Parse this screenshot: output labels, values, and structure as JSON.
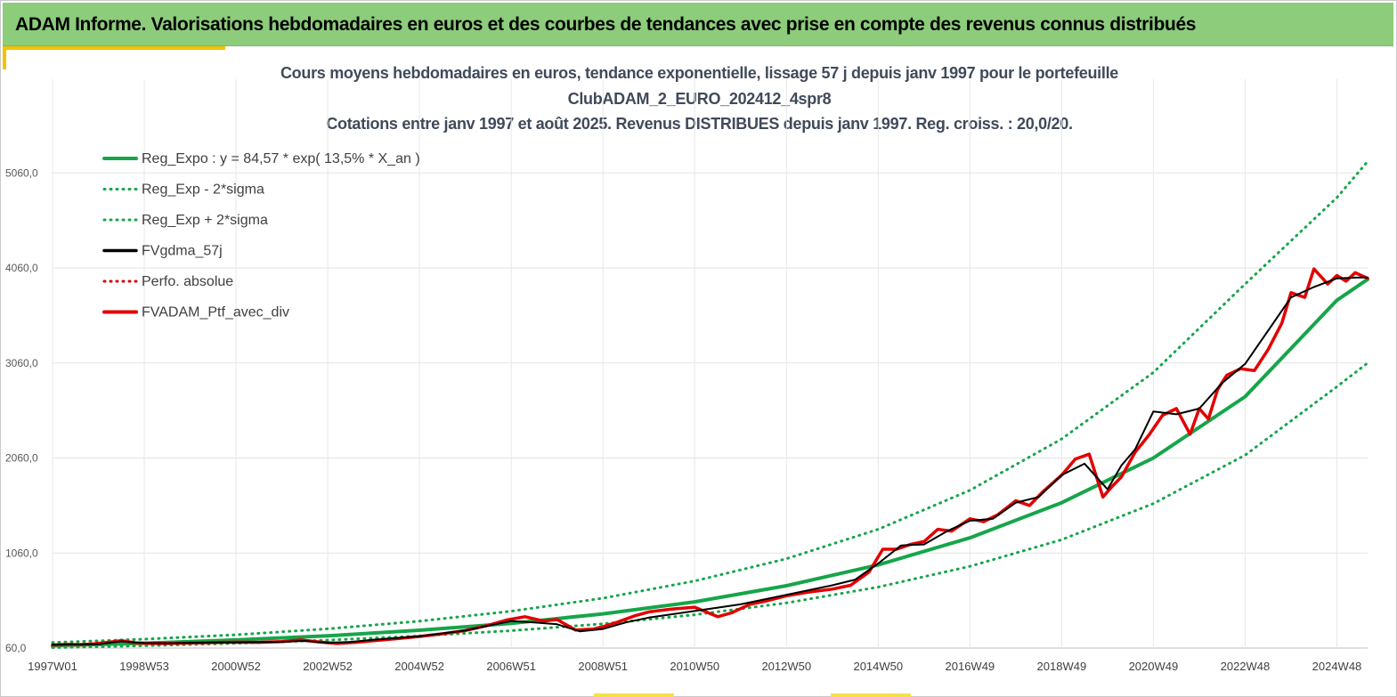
{
  "banner": {
    "title": "ADAM Informe. Valorisations hebdomadaires en euros et des courbes de tendances avec prise en compte des revenus connus distribués"
  },
  "colors": {
    "banner_bg": "#8ccc7a",
    "trend": "#16a54a",
    "band": "#16a54a",
    "smooth": "#000000",
    "perf": "#d40000",
    "portfolio": "#e30000",
    "accent": "#f2c200"
  },
  "chart_data": {
    "type": "line",
    "title_lines": [
      "Cours moyens hebdomadaires  en euros, tendance exponentielle, lissage 57 j depuis janv 1997 pour le portefeuille",
      "ClubADAM_2_EURO_202412_4spr8",
      "Cotations  entre janv 1997 et août  2025. Revenus DISTRIBUES depuis janv 1997. Reg. croiss. : 20,0/20."
    ],
    "xlabel": "",
    "ylabel": "",
    "x_tick_labels": [
      "1997W01",
      "1998W53",
      "2000W52",
      "2002W52",
      "2004W52",
      "2006W51",
      "2008W51",
      "2010W50",
      "2012W50",
      "2014W50",
      "2016W49",
      "2018W49",
      "2020W49",
      "2022W48",
      "2024W48"
    ],
    "x_tick_years": [
      1997.0,
      1999.0,
      2001.0,
      2003.0,
      2005.0,
      2007.0,
      2009.0,
      2011.0,
      2013.0,
      2015.0,
      2017.0,
      2019.0,
      2021.0,
      2023.0,
      2025.0
    ],
    "y_tick_labels": [
      "60,0",
      "1060,0",
      "2060,0",
      "3060,0",
      "4060,0",
      "5060,0"
    ],
    "y_ticks": [
      60,
      1060,
      2060,
      3060,
      4060,
      5060
    ],
    "xlim": [
      1997.0,
      2025.67
    ],
    "ylim": [
      60,
      6000
    ],
    "grid": true,
    "legend_position": "top-left",
    "legend": [
      {
        "label": "Reg_Expo : y = 84,57 * exp( 13,5% *  X_an )",
        "style": "solid-thick",
        "color": "#16a54a"
      },
      {
        "label": "Reg_Exp - 2*sigma",
        "style": "dotted",
        "color": "#16a54a"
      },
      {
        "label": "Reg_Exp + 2*sigma",
        "style": "dotted",
        "color": "#16a54a"
      },
      {
        "label": "FVgdma_57j",
        "style": "solid",
        "color": "#000000"
      },
      {
        "label": "Perfo. absolue",
        "style": "dotted",
        "color": "#d40000"
      },
      {
        "label": "FVADAM_Ptf_avec_div",
        "style": "solid-thick",
        "color": "#e30000"
      }
    ],
    "series": [
      {
        "name": "Reg_Expo : y = 84,57 * exp( 13,5% *  X_an )",
        "x": [
          1997.0,
          1999.0,
          2001.0,
          2003.0,
          2005.0,
          2007.0,
          2009.0,
          2011.0,
          2013.0,
          2015.0,
          2017.0,
          2019.0,
          2021.0,
          2023.0,
          2025.0,
          2025.67
        ],
        "values": [
          85,
          111,
          145,
          188,
          247,
          320,
          420,
          546,
          716,
          935,
          1220,
          1590,
          2060,
          2705,
          3720,
          3940
        ]
      },
      {
        "name": "Reg_Exp - 2*sigma",
        "x": [
          1997.0,
          1999.0,
          2001.0,
          2003.0,
          2005.0,
          2007.0,
          2009.0,
          2011.0,
          2013.0,
          2015.0,
          2017.0,
          2019.0,
          2021.0,
          2023.0,
          2025.0,
          2025.67
        ],
        "values": [
          65,
          84,
          110,
          143,
          187,
          243,
          315,
          410,
          535,
          702,
          920,
          1200,
          1580,
          2090,
          2810,
          3060
        ]
      },
      {
        "name": "Reg_Exp + 2*sigma",
        "x": [
          1997.0,
          1999.0,
          2001.0,
          2003.0,
          2005.0,
          2007.0,
          2009.0,
          2011.0,
          2013.0,
          2015.0,
          2017.0,
          2019.0,
          2021.0,
          2023.0,
          2025.0,
          2025.67
        ],
        "values": [
          118,
          154,
          200,
          262,
          343,
          448,
          585,
          765,
          1000,
          1310,
          1720,
          2260,
          2960,
          3890,
          4800,
          5180
        ]
      },
      {
        "name": "FVgdma_57j",
        "x": [
          1997.0,
          1997.5,
          1998.0,
          1998.5,
          1999.0,
          1999.5,
          2000.0,
          2001.0,
          2002.0,
          2002.5,
          2003.0,
          2003.5,
          2004.0,
          2005.0,
          2006.0,
          2007.0,
          2007.5,
          2008.0,
          2008.5,
          2009.0,
          2009.5,
          2010.0,
          2011.0,
          2012.0,
          2013.0,
          2014.0,
          2014.5,
          2015.0,
          2015.5,
          2016.0,
          2016.5,
          2017.0,
          2017.5,
          2018.0,
          2018.5,
          2019.0,
          2019.5,
          2020.0,
          2020.3,
          2020.6,
          2021.0,
          2021.5,
          2022.0,
          2022.5,
          2023.0,
          2023.5,
          2024.0,
          2024.5,
          2025.0,
          2025.5,
          2025.67
        ],
        "values": [
          95,
          100,
          100,
          130,
          112,
          110,
          115,
          120,
          125,
          135,
          115,
          125,
          148,
          185,
          245,
          345,
          330,
          310,
          235,
          260,
          330,
          380,
          450,
          520,
          620,
          720,
          780,
          950,
          1140,
          1150,
          1290,
          1400,
          1420,
          1590,
          1650,
          1880,
          2000,
          1730,
          1980,
          2150,
          2550,
          2520,
          2580,
          2850,
          3050,
          3400,
          3750,
          3860,
          3950,
          3960,
          3960
        ]
      },
      {
        "name": "FVADAM_Ptf_avec_div",
        "x": [
          1997.0,
          1997.3,
          1997.6,
          1997.9,
          1998.2,
          1998.5,
          1998.8,
          1999.2,
          1999.6,
          2000.0,
          2000.5,
          2001.0,
          2001.5,
          2002.0,
          2002.4,
          2002.8,
          2003.2,
          2003.6,
          2004.0,
          2004.5,
          2005.0,
          2005.5,
          2006.0,
          2006.5,
          2006.9,
          2007.3,
          2007.7,
          2008.0,
          2008.4,
          2008.8,
          2009.0,
          2009.3,
          2009.7,
          2010.0,
          2010.5,
          2011.0,
          2011.5,
          2011.8,
          2012.2,
          2012.6,
          2013.0,
          2013.5,
          2014.0,
          2014.4,
          2014.8,
          2015.1,
          2015.4,
          2015.7,
          2016.0,
          2016.3,
          2016.6,
          2017.0,
          2017.3,
          2017.6,
          2018.0,
          2018.3,
          2018.6,
          2019.0,
          2019.3,
          2019.6,
          2019.9,
          2020.1,
          2020.3,
          2020.6,
          2020.9,
          2021.2,
          2021.5,
          2021.8,
          2022.0,
          2022.2,
          2022.4,
          2022.6,
          2022.9,
          2023.2,
          2023.5,
          2023.8,
          2024.0,
          2024.3,
          2024.5,
          2024.8,
          2025.0,
          2025.2,
          2025.4,
          2025.67
        ],
        "values": [
          92,
          98,
          96,
          105,
          120,
          138,
          115,
          108,
          110,
          112,
          118,
          122,
          120,
          128,
          145,
          125,
          108,
          120,
          138,
          158,
          182,
          210,
          245,
          300,
          355,
          390,
          345,
          360,
          250,
          260,
          285,
          330,
          400,
          440,
          470,
          490,
          390,
          430,
          520,
          560,
          610,
          650,
          680,
          720,
          860,
          1100,
          1100,
          1150,
          1180,
          1310,
          1290,
          1420,
          1390,
          1460,
          1610,
          1560,
          1710,
          1880,
          2050,
          2100,
          1650,
          1760,
          1860,
          2120,
          2300,
          2510,
          2580,
          2310,
          2580,
          2470,
          2780,
          2930,
          3000,
          2980,
          3200,
          3480,
          3800,
          3750,
          4050,
          3890,
          3980,
          3920,
          4010,
          3950
        ]
      }
    ]
  }
}
